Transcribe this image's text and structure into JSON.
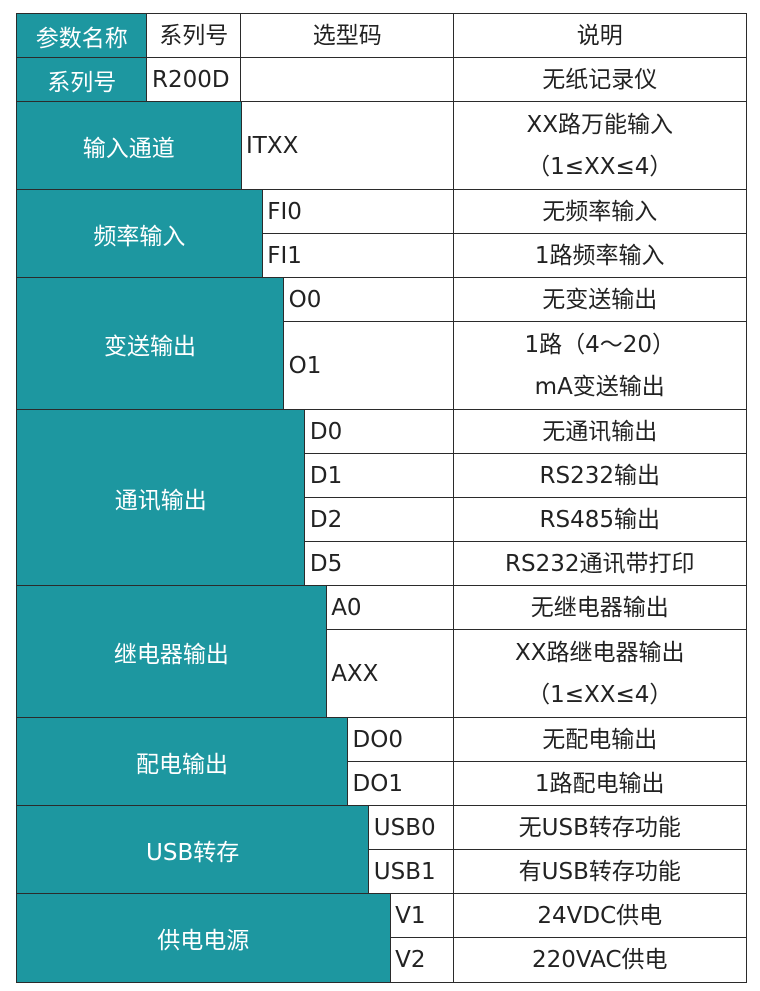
{
  "table": {
    "header": [
      "参数名称",
      "系列号",
      "选型码",
      "说明"
    ],
    "series_row": {
      "label": "系列号",
      "code": "R200D",
      "description": "无纸记录仪"
    },
    "groups": [
      {
        "name": "输入通道",
        "options": [
          {
            "code": "ITXX",
            "description": [
              "XX路万能输入",
              "（1≤XX≤4）"
            ]
          }
        ]
      },
      {
        "name": "频率输入",
        "options": [
          {
            "code": "FI0",
            "description": [
              "无频率输入"
            ]
          },
          {
            "code": "FI1",
            "description": [
              "1路频率输入"
            ]
          }
        ]
      },
      {
        "name": "变送输出",
        "options": [
          {
            "code": "O0",
            "description": [
              "无变送输出"
            ]
          },
          {
            "code": "O1",
            "description": [
              "1路（4～20）",
              "mA变送输出"
            ]
          }
        ]
      },
      {
        "name": "通讯输出",
        "options": [
          {
            "code": "D0",
            "description": [
              "无通讯输出"
            ]
          },
          {
            "code": "D1",
            "description": [
              "RS232输出"
            ]
          },
          {
            "code": "D2",
            "description": [
              "RS485输出"
            ]
          },
          {
            "code": "D5",
            "description": [
              "RS232通讯带打印"
            ]
          }
        ]
      },
      {
        "name": "继电器输出",
        "options": [
          {
            "code": "A0",
            "description": [
              "无继电器输出"
            ]
          },
          {
            "code": "AXX",
            "description": [
              "XX路继电器输出",
              "（1≤XX≤4）"
            ]
          }
        ]
      },
      {
        "name": "配电输出",
        "options": [
          {
            "code": "DO0",
            "description": [
              "无配电输出"
            ]
          },
          {
            "code": "DO1",
            "description": [
              "1路配电输出"
            ]
          }
        ]
      },
      {
        "name": "USB转存",
        "options": [
          {
            "code": "USB0",
            "description": [
              "无USB转存功能"
            ]
          },
          {
            "code": "USB1",
            "description": [
              "有USB转存功能"
            ]
          }
        ]
      },
      {
        "name": "供电电源",
        "options": [
          {
            "code": "V1",
            "description": [
              "24VDC供电"
            ]
          },
          {
            "code": "V2",
            "description": [
              "220VAC供电"
            ]
          }
        ]
      }
    ]
  }
}
